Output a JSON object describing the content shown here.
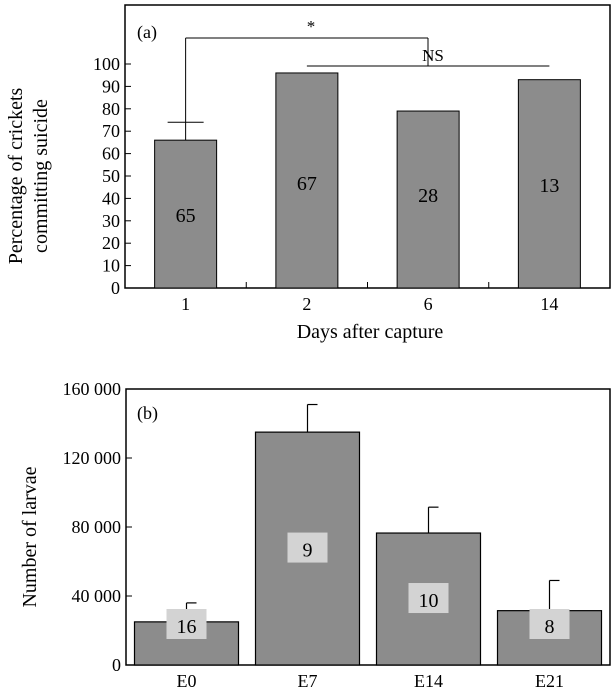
{
  "chart_data": [
    {
      "type": "bar",
      "panel_label": "(a)",
      "categories": [
        "1",
        "2",
        "6",
        "14"
      ],
      "values": [
        66,
        96,
        79,
        93
      ],
      "error_upper": [
        74,
        null,
        null,
        null
      ],
      "sample_sizes": [
        "65",
        "67",
        "28",
        "13"
      ],
      "xlabel": "Days after capture",
      "ylabel_lines": [
        "Percentage of crickets",
        "committing suicide"
      ],
      "ylim": [
        0,
        100
      ],
      "yticks": [
        0,
        10,
        20,
        30,
        40,
        50,
        60,
        70,
        80,
        90,
        100
      ],
      "significance": [
        {
          "label": "*",
          "from": "1",
          "to": "2–14"
        },
        {
          "label": "NS",
          "from": "2",
          "to": "14"
        }
      ],
      "bar_color": "#8c8c8c",
      "grid": false
    },
    {
      "type": "bar",
      "panel_label": "(b)",
      "categories": [
        "E0",
        "E7",
        "E14",
        "E21"
      ],
      "values": [
        25000,
        135000,
        76500,
        31500
      ],
      "error_upper": [
        36000,
        151000,
        91500,
        49000
      ],
      "sample_sizes": [
        "16",
        "9",
        "10",
        "8"
      ],
      "xlabel": "",
      "ylabel_lines": [
        "Number of larvae"
      ],
      "ylim": [
        0,
        160000
      ],
      "yticks": [
        0,
        40000,
        80000,
        120000,
        160000
      ],
      "ytick_labels": [
        "0",
        "40 000",
        "80 000",
        "120 000",
        "160 000"
      ],
      "bar_color": "#8c8c8c",
      "label_box_color": "#d3d3d3",
      "grid": false
    }
  ]
}
